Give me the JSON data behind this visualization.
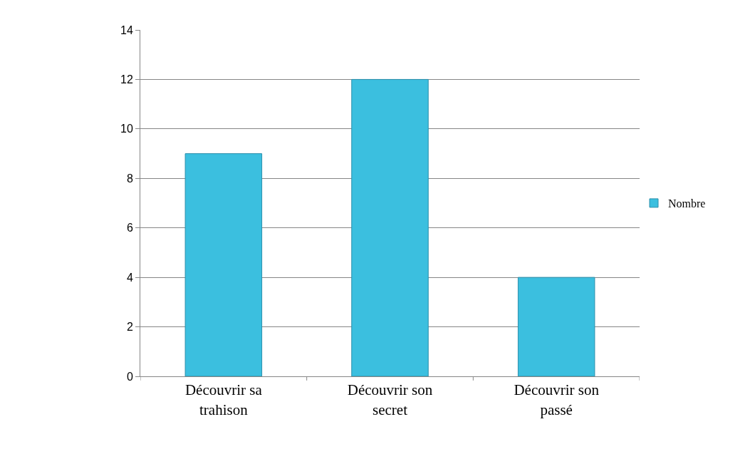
{
  "chart_data": {
    "type": "bar",
    "categories": [
      "Découvrir sa trahison",
      "Découvrir son secret",
      "Découvrir son passé"
    ],
    "series": [
      {
        "name": "Nombre",
        "color": "#3bbfdf",
        "values": [
          9,
          12,
          4
        ]
      }
    ],
    "ylim": [
      0,
      14
    ],
    "yticks": [
      0,
      2,
      4,
      6,
      8,
      10,
      12,
      14
    ],
    "grid": "y",
    "legend": "right"
  }
}
